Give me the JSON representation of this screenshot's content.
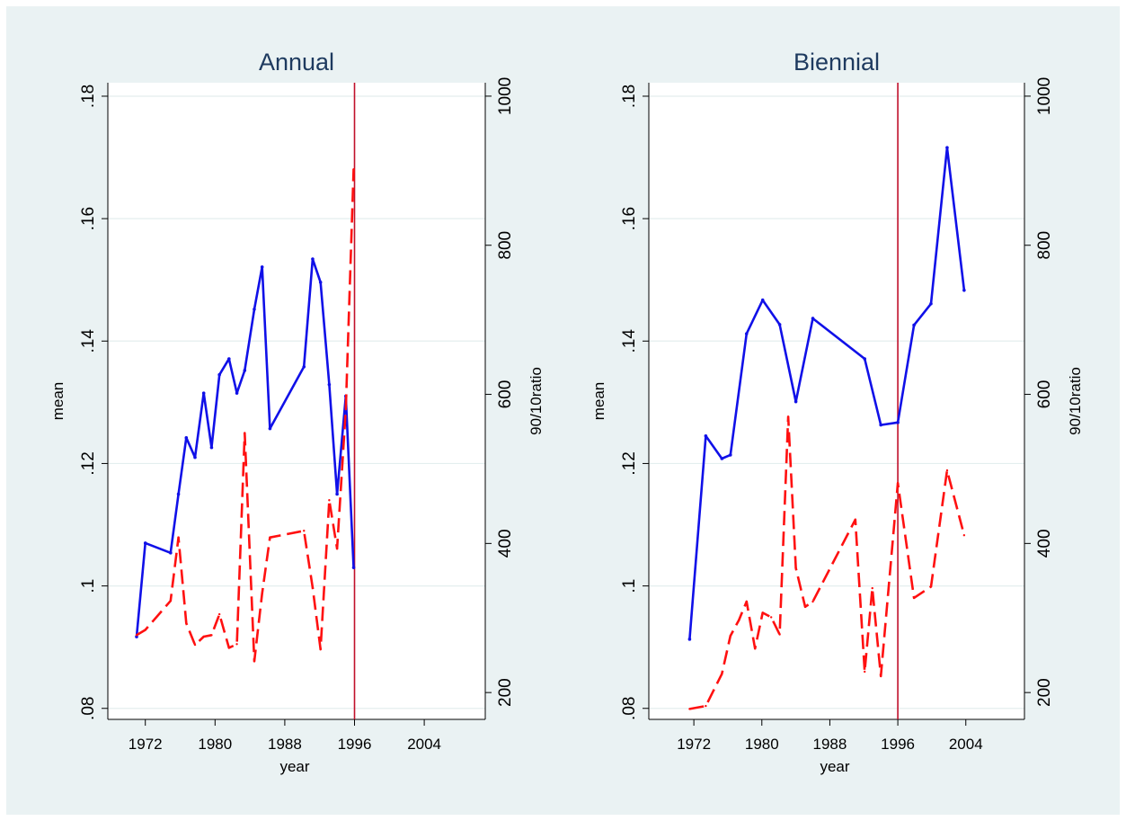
{
  "chart_data": [
    {
      "type": "line",
      "title": "Annual",
      "x_label": "year",
      "y_label": "mean",
      "y2_label": "90/10ratio",
      "xlim": [
        1967.7,
        2011
      ],
      "xticks": [
        1972,
        1980,
        1988,
        1996,
        2004
      ],
      "ylim": [
        0.0782,
        0.1822
      ],
      "yticks": [
        {
          "value": 0.08,
          "label": ".08"
        },
        {
          "value": 0.1,
          "label": ".1"
        },
        {
          "value": 0.12,
          "label": ".12"
        },
        {
          "value": 0.14,
          "label": ".14"
        },
        {
          "value": 0.16,
          "label": ".16"
        },
        {
          "value": 0.18,
          "label": ".18"
        }
      ],
      "y2lim": [
        164,
        1018
      ],
      "y2ticks": [
        200,
        400,
        600,
        800,
        1000
      ],
      "grid": true,
      "xline": 1996,
      "xline_color": "#c0102a",
      "series": [
        {
          "color": "#1010e8",
          "style": "solid",
          "x": [
            1971.0,
            1972.0,
            1974.9,
            1975.8,
            1976.7,
            1977.7,
            1978.7,
            1979.6,
            1980.5,
            1981.6,
            1982.5,
            1983.4,
            1984.5,
            1985.4,
            1986.3,
            1990.2,
            1991.2,
            1992.1,
            1993.1,
            1994.0,
            1995.0,
            1995.9
          ],
          "values": [
            0.0917,
            0.107,
            0.1054,
            0.115,
            0.1242,
            0.121,
            0.1315,
            0.1226,
            0.1345,
            0.1371,
            0.1315,
            0.1352,
            0.1452,
            0.1521,
            0.1257,
            0.1358,
            0.1534,
            0.1496,
            0.1329,
            0.115,
            0.131,
            0.103
          ]
        },
        {
          "color": "#ff1010",
          "style": "dashed",
          "axis": "y2",
          "x": [
            1971.0,
            1972.0,
            1974.9,
            1975.8,
            1976.7,
            1977.7,
            1978.7,
            1979.6,
            1980.5,
            1981.6,
            1982.5,
            1983.4,
            1984.5,
            1985.4,
            1986.3,
            1990.2,
            1991.2,
            1992.1,
            1993.1,
            1994.0,
            1995.0,
            1995.9
          ],
          "values": [
            277,
            284,
            323,
            408,
            293,
            264,
            275,
            277,
            305,
            260,
            265,
            548,
            242,
            333,
            408,
            417,
            341,
            258,
            458,
            393,
            580,
            902
          ]
        }
      ]
    },
    {
      "type": "line",
      "title": "Biennial",
      "x_label": "year",
      "y_label": "mean",
      "y2_label": "90/10ratio",
      "xlim": [
        1966.7,
        2010.9
      ],
      "xticks": [
        1972,
        1980,
        1988,
        1996,
        2004
      ],
      "ylim": [
        0.0782,
        0.1822
      ],
      "yticks": [
        {
          "value": 0.08,
          "label": ".08"
        },
        {
          "value": 0.1,
          "label": ".1"
        },
        {
          "value": 0.12,
          "label": ".12"
        },
        {
          "value": 0.14,
          "label": ".14"
        },
        {
          "value": 0.16,
          "label": ".16"
        },
        {
          "value": 0.18,
          "label": ".18"
        }
      ],
      "y2lim": [
        164,
        1018
      ],
      "y2ticks": [
        200,
        400,
        600,
        800,
        1000
      ],
      "grid": true,
      "xline": 1996,
      "xline_color": "#c0102a",
      "series": [
        {
          "color": "#1010e8",
          "style": "solid",
          "x": [
            1971.5,
            1973.4,
            1975.3,
            1976.3,
            1978.2,
            1980.1,
            1982.1,
            1984.0,
            1986.0,
            1992.1,
            1994.0,
            1996.0,
            1997.9,
            1999.9,
            2001.8,
            2003.8
          ],
          "values": [
            0.0913,
            0.1245,
            0.1208,
            0.1214,
            0.1412,
            0.1467,
            0.1427,
            0.1301,
            0.1437,
            0.1371,
            0.1263,
            0.1267,
            0.1426,
            0.1461,
            0.1716,
            0.1483
          ]
        },
        {
          "color": "#ff1010",
          "style": "dashed",
          "axis": "y2",
          "x": [
            1971.5,
            1973.4,
            1975.3,
            1976.3,
            1977.3,
            1978.2,
            1979.2,
            1980.1,
            1981.1,
            1982.1,
            1983.1,
            1984.0,
            1985.1,
            1986.0,
            1991.0,
            1992.1,
            1993.0,
            1994.0,
            1996.0,
            1997.9,
            1999.9,
            2001.8,
            2003.8
          ],
          "values": [
            178,
            182,
            225,
            276,
            297,
            322,
            259,
            307,
            301,
            278,
            570,
            367,
            315,
            322,
            432,
            228,
            340,
            222,
            481,
            327,
            342,
            498,
            411
          ]
        }
      ]
    }
  ]
}
